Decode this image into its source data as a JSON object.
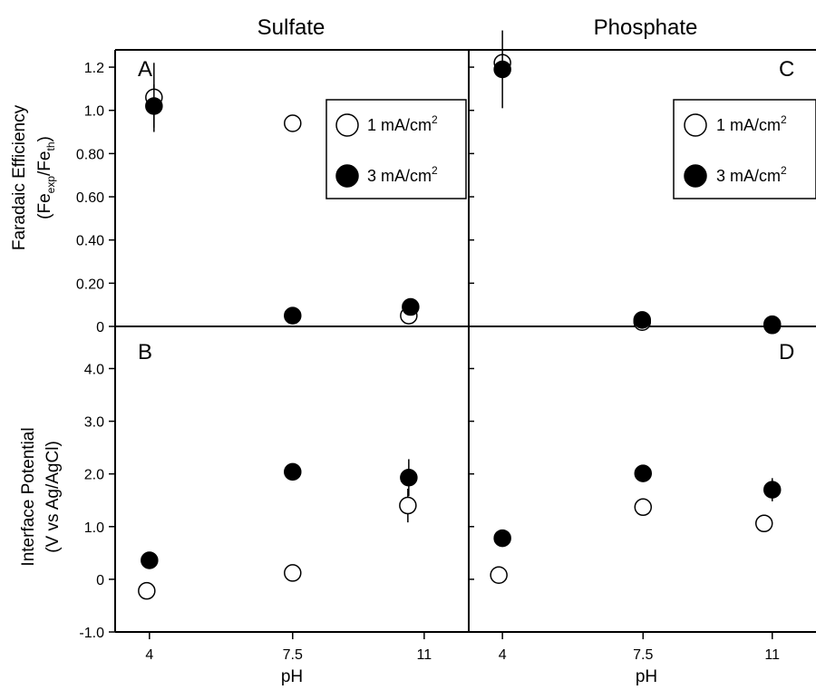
{
  "figure": {
    "column_titles": [
      "Sulfate",
      "Phosphate"
    ],
    "y_top_label": {
      "line1": "Faradaic Efficiency",
      "line2_parts": [
        "(Fe",
        "exp",
        "/Fe",
        "th",
        ")"
      ]
    },
    "y_bottom_label": {
      "line1": "Interface Potential",
      "line2": "(V vs Ag/AgCl)"
    },
    "x_label": "pH",
    "legend": [
      {
        "text": "1 mA/cm",
        "sup": "2",
        "marker": "open-circle"
      },
      {
        "text": "3 mA/cm",
        "sup": "2",
        "marker": "filled-circle"
      }
    ]
  },
  "chart_data": [
    {
      "panel": "A",
      "type": "scatter",
      "column": "Sulfate",
      "x_categories": [
        "4",
        "7.5",
        "11"
      ],
      "ylim": [
        0,
        1.28
      ],
      "y_ticks": [
        "0",
        "0.20",
        "0.40",
        "0.60",
        "0.80",
        "1.0",
        "1.2"
      ],
      "legend_placement": "top-right",
      "series": [
        {
          "name": "1 mA/cm2",
          "marker": "open",
          "points": [
            {
              "x": "4",
              "y": 1.06,
              "y_err": 0.16,
              "x_err": 0.2
            },
            {
              "x": "7.5",
              "y": 0.94,
              "x_err": 0.2
            },
            {
              "x": "11",
              "y": 0.05,
              "x_err": 0.2
            }
          ]
        },
        {
          "name": "3 mA/cm2",
          "marker": "filled",
          "points": [
            {
              "x": "4",
              "y": 1.02,
              "y_err": 0.1,
              "x_err": 0.2
            },
            {
              "x": "7.5",
              "y": 0.05,
              "x_err": 0.2
            },
            {
              "x": "11",
              "y": 0.09,
              "x_err": 0.2
            }
          ]
        }
      ]
    },
    {
      "panel": "B",
      "type": "scatter",
      "column": "Sulfate",
      "x_categories": [
        "4",
        "7.5",
        "11"
      ],
      "ylim": [
        -1.0,
        4.8
      ],
      "y_ticks": [
        "-1.0",
        "0",
        "1.0",
        "2.0",
        "3.0",
        "4.0"
      ],
      "series": [
        {
          "name": "1 mA/cm2",
          "marker": "open",
          "points": [
            {
              "x": "4",
              "y": -0.22,
              "x_err": 0.2
            },
            {
              "x": "7.5",
              "y": 0.12,
              "x_err": 0.2
            },
            {
              "x": "11",
              "y": 1.4,
              "y_err": 0.32,
              "x_err": 0.2
            }
          ]
        },
        {
          "name": "3 mA/cm2",
          "marker": "filled",
          "points": [
            {
              "x": "4",
              "y": 0.36,
              "x_err": 0.2
            },
            {
              "x": "7.5",
              "y": 2.04,
              "x_err": 0.2
            },
            {
              "x": "11",
              "y": 1.93,
              "y_err": 0.35,
              "x_err": 0.2
            }
          ]
        }
      ]
    },
    {
      "panel": "C",
      "type": "scatter",
      "column": "Phosphate",
      "x_categories": [
        "4",
        "7.5",
        "11"
      ],
      "ylim": [
        0,
        1.28
      ],
      "legend_placement": "top-right",
      "series": [
        {
          "name": "1 mA/cm2",
          "marker": "open",
          "points": [
            {
              "x": "4",
              "y": 1.22,
              "y_err": 0.03,
              "x_err": 0.2
            },
            {
              "x": "7.5",
              "y": 0.02,
              "x_err": 0.2
            },
            {
              "x": "11",
              "y": 0.005,
              "x_err": 0.2
            }
          ]
        },
        {
          "name": "3 mA/cm2",
          "marker": "filled",
          "points": [
            {
              "x": "4",
              "y": 1.19,
              "y_err": 0.18,
              "x_err": 0.2
            },
            {
              "x": "7.5",
              "y": 0.03,
              "y_err": 0.02,
              "x_err": 0.2
            },
            {
              "x": "11",
              "y": 0.01,
              "x_err": 0.2
            }
          ]
        }
      ]
    },
    {
      "panel": "D",
      "type": "scatter",
      "column": "Phosphate",
      "x_categories": [
        "4",
        "7.5",
        "11"
      ],
      "ylim": [
        -1.0,
        4.8
      ],
      "series": [
        {
          "name": "1 mA/cm2",
          "marker": "open",
          "points": [
            {
              "x": "4",
              "y": 0.08,
              "x_err": 0.2
            },
            {
              "x": "7.5",
              "y": 1.37,
              "x_err": 0.2
            },
            {
              "x": "11",
              "y": 1.06,
              "x_err": 0.2
            }
          ]
        },
        {
          "name": "3 mA/cm2",
          "marker": "filled",
          "points": [
            {
              "x": "4",
              "y": 0.78,
              "x_err": 0.2
            },
            {
              "x": "7.5",
              "y": 2.01,
              "x_err": 0.2
            },
            {
              "x": "11",
              "y": 1.7,
              "y_err": 0.22,
              "x_err": 0.2
            }
          ]
        }
      ]
    }
  ]
}
